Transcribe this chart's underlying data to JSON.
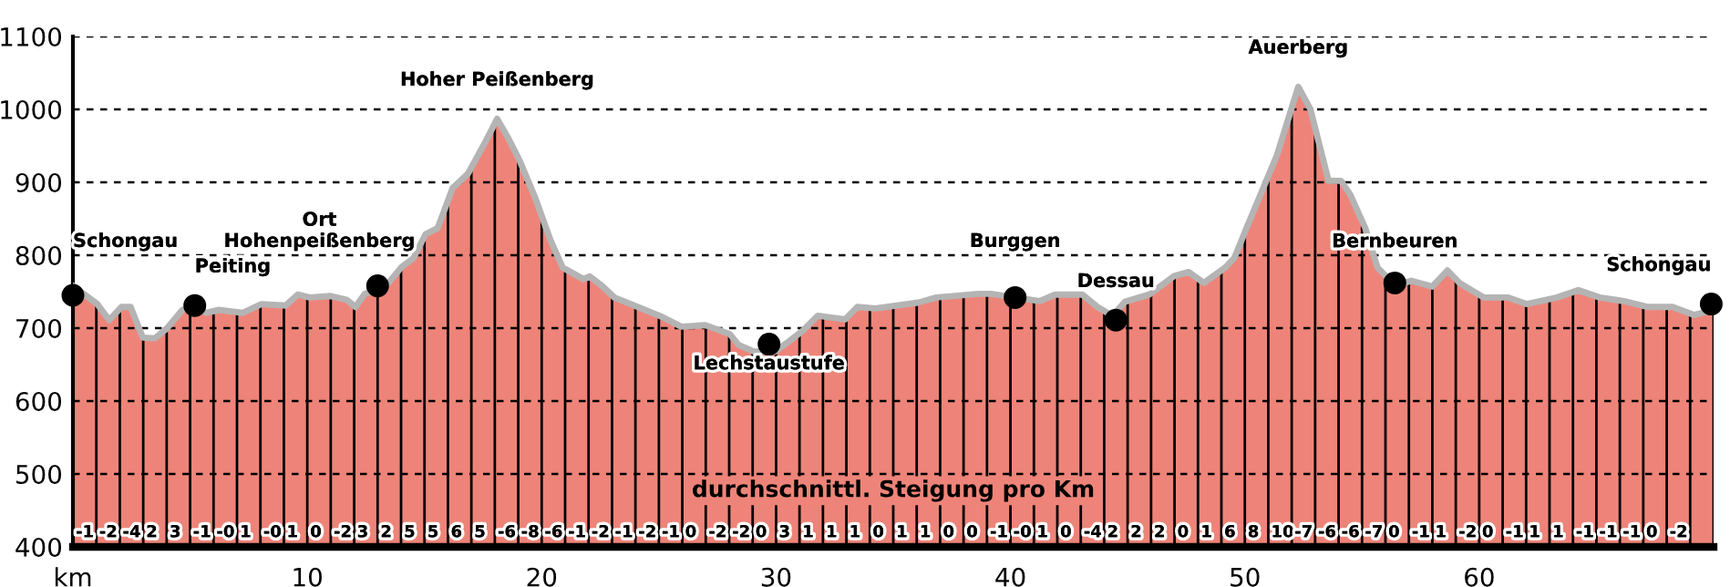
{
  "chart_data": {
    "type": "area",
    "xlim": [
      0,
      70
    ],
    "ylim": [
      400,
      1100
    ],
    "xticks": [
      {
        "value": 0,
        "label": "km"
      },
      10,
      20,
      30,
      40,
      50,
      60
    ],
    "yticks": [
      400,
      500,
      600,
      700,
      800,
      900,
      1000,
      1100
    ],
    "grid": "y",
    "series": [
      {
        "color": "#ee8479",
        "x": [
          0,
          1.04,
          1.55,
          2.07,
          2.46,
          2.98,
          3.5,
          4.02,
          4.67,
          5.06,
          5.71,
          6.23,
          7.26,
          8.04,
          9.08,
          9.6,
          10.1,
          11.0,
          11.67,
          12.06,
          12.45,
          13.36,
          14.0,
          14.53,
          15.05,
          15.56,
          16.2,
          16.86,
          17.64,
          18.1,
          18.55,
          19.07,
          19.72,
          20.37,
          20.9,
          21.79,
          22.05,
          22.57,
          23.1,
          24.1,
          25.17,
          25.95,
          26.98,
          28.02,
          28.4,
          29.05,
          29.96,
          30.6,
          31.12,
          31.78,
          32.95,
          33.47,
          34.24,
          36.06,
          36.84,
          38.65,
          39.17,
          40.21,
          41.25,
          41.9,
          43.07,
          43.71,
          44.36,
          44.88,
          45.92,
          46.96,
          47.6,
          48.25,
          49.16,
          49.55,
          50.07,
          50.72,
          51.37,
          52.28,
          52.8,
          53.57,
          54.1,
          54.5,
          55.14,
          55.66,
          56.44,
          57.1,
          58.0,
          58.64,
          59.16,
          60.2,
          61.24,
          62.02,
          63.32,
          64.23,
          65.14,
          66.18,
          67.2,
          68.25,
          69.16,
          70
        ],
        "values": [
          758,
          733,
          711,
          729,
          729,
          687,
          686,
          700,
          725,
          729,
          721,
          725,
          721,
          733,
          731,
          746,
          742,
          744,
          739,
          729,
          747,
          758,
          783,
          796,
          829,
          837,
          892,
          912,
          958,
          987,
          962,
          929,
          879,
          821,
          783,
          767,
          771,
          758,
          742,
          729,
          715,
          702,
          704,
          692,
          677,
          668,
          668,
          683,
          696,
          717,
          712,
          729,
          727,
          735,
          742,
          747,
          747,
          742,
          737,
          746,
          746,
          729,
          717,
          736,
          746,
          771,
          777,
          762,
          783,
          796,
          837,
          887,
          937,
          1031,
          1000,
          902,
          902,
          883,
          837,
          783,
          758,
          765,
          757,
          779,
          762,
          742,
          742,
          733,
          742,
          752,
          742,
          737,
          729,
          729,
          718,
          725
        ]
      },
      {
        "type": "scatter",
        "color": "#000000",
        "marker": "circle",
        "x": [
          0,
          5.2,
          13.0,
          29.7,
          40.2,
          44.5,
          56.4,
          69.9
        ],
        "values": [
          745,
          731,
          758,
          678,
          742,
          711,
          762,
          733
        ]
      }
    ],
    "annotations": [
      {
        "text": "Schongau",
        "x": 0,
        "y": 745
      },
      {
        "text": "Peiting",
        "x": 5.2,
        "y": 731
      },
      {
        "text": "Ort\nHohenpeißenberg",
        "x": 13.0,
        "y": 758
      },
      {
        "text": "Hoher Peißenberg",
        "x": 18.1,
        "y": 987
      },
      {
        "text": "Lechstaustufe",
        "x": 29.7,
        "y": 678
      },
      {
        "text": "Burggen",
        "x": 40.2,
        "y": 742
      },
      {
        "text": "Dessau",
        "x": 44.5,
        "y": 711
      },
      {
        "text": "Auerberg",
        "x": 52.28,
        "y": 1031
      },
      {
        "text": "Bernbeuren",
        "x": 56.4,
        "y": 762
      },
      {
        "text": "Schongau",
        "x": 69.9,
        "y": 733
      },
      "durchschnittl. Steigung pro Km",
      {
        "text": "-1",
        "x": 0,
        "y": 400
      },
      {
        "text": "-2",
        "x": 1,
        "y": 400
      },
      {
        "text": "-4",
        "x": 2,
        "y": 400
      },
      {
        "text": "2",
        "x": 3,
        "y": 400
      },
      {
        "text": "3",
        "x": 4,
        "y": 400
      },
      {
        "text": "-1",
        "x": 5,
        "y": 400
      },
      {
        "text": "-0",
        "x": 6,
        "y": 400
      },
      {
        "text": "1",
        "x": 7,
        "y": 400
      },
      {
        "text": "-0",
        "x": 8,
        "y": 400
      },
      {
        "text": "1",
        "x": 9,
        "y": 400
      },
      {
        "text": "0",
        "x": 10,
        "y": 400
      },
      {
        "text": "-2",
        "x": 11,
        "y": 400
      },
      {
        "text": "3",
        "x": 12,
        "y": 400
      },
      {
        "text": "2",
        "x": 13,
        "y": 400
      },
      {
        "text": "5",
        "x": 14,
        "y": 400
      },
      {
        "text": "5",
        "x": 15,
        "y": 400
      },
      {
        "text": "6",
        "x": 16,
        "y": 400
      },
      {
        "text": "5",
        "x": 17,
        "y": 400
      },
      {
        "text": "-6",
        "x": 18,
        "y": 400
      },
      {
        "text": "-8",
        "x": 19,
        "y": 400
      },
      {
        "text": "-6",
        "x": 20,
        "y": 400
      },
      {
        "text": "-1",
        "x": 21,
        "y": 400
      },
      {
        "text": "-2",
        "x": 22,
        "y": 400
      },
      {
        "text": "-1",
        "x": 23,
        "y": 400
      },
      {
        "text": "-2",
        "x": 24,
        "y": 400
      },
      {
        "text": "-1",
        "x": 25,
        "y": 400
      },
      {
        "text": "0",
        "x": 26,
        "y": 400
      },
      {
        "text": "-2",
        "x": 27,
        "y": 400
      },
      {
        "text": "-2",
        "x": 28,
        "y": 400
      },
      {
        "text": "0",
        "x": 29,
        "y": 400
      },
      {
        "text": "3",
        "x": 30,
        "y": 400
      },
      {
        "text": "1",
        "x": 31,
        "y": 400
      },
      {
        "text": "1",
        "x": 32,
        "y": 400
      },
      {
        "text": "1",
        "x": 33,
        "y": 400
      },
      {
        "text": "0",
        "x": 34,
        "y": 400
      },
      {
        "text": "1",
        "x": 35,
        "y": 400
      },
      {
        "text": "1",
        "x": 36,
        "y": 400
      },
      {
        "text": "0",
        "x": 37,
        "y": 400
      },
      {
        "text": "0",
        "x": 38,
        "y": 400
      },
      {
        "text": "-1",
        "x": 39,
        "y": 400
      },
      {
        "text": "-0",
        "x": 40,
        "y": 400
      },
      {
        "text": "1",
        "x": 41,
        "y": 400
      },
      {
        "text": "0",
        "x": 42,
        "y": 400
      },
      {
        "text": "-4",
        "x": 43,
        "y": 400
      },
      {
        "text": "2",
        "x": 44,
        "y": 400
      },
      {
        "text": "2",
        "x": 45,
        "y": 400
      },
      {
        "text": "2",
        "x": 46,
        "y": 400
      },
      {
        "text": "0",
        "x": 47,
        "y": 400
      },
      {
        "text": "1",
        "x": 48,
        "y": 400
      },
      {
        "text": "6",
        "x": 49,
        "y": 400
      },
      {
        "text": "8",
        "x": 50,
        "y": 400
      },
      {
        "text": "10",
        "x": 51,
        "y": 400
      },
      {
        "text": "-7",
        "x": 52,
        "y": 400
      },
      {
        "text": "-6",
        "x": 53,
        "y": 400
      },
      {
        "text": "-6",
        "x": 54,
        "y": 400
      },
      {
        "text": "-7",
        "x": 55,
        "y": 400
      },
      {
        "text": "0",
        "x": 56,
        "y": 400
      },
      {
        "text": "-1",
        "x": 57,
        "y": 400
      },
      {
        "text": "1",
        "x": 58,
        "y": 400
      },
      {
        "text": "-2",
        "x": 59,
        "y": 400
      },
      {
        "text": "0",
        "x": 60,
        "y": 400
      },
      {
        "text": "-1",
        "x": 61,
        "y": 400
      },
      {
        "text": "1",
        "x": 62,
        "y": 400
      },
      {
        "text": "1",
        "x": 63,
        "y": 400
      },
      {
        "text": "-1",
        "x": 64,
        "y": 400
      },
      {
        "text": "-1",
        "x": 65,
        "y": 400
      },
      {
        "text": "-1",
        "x": 66,
        "y": 400
      },
      {
        "text": "0",
        "x": 67,
        "y": 400
      },
      {
        "text": "-2",
        "x": 68,
        "y": 400
      }
    ]
  }
}
